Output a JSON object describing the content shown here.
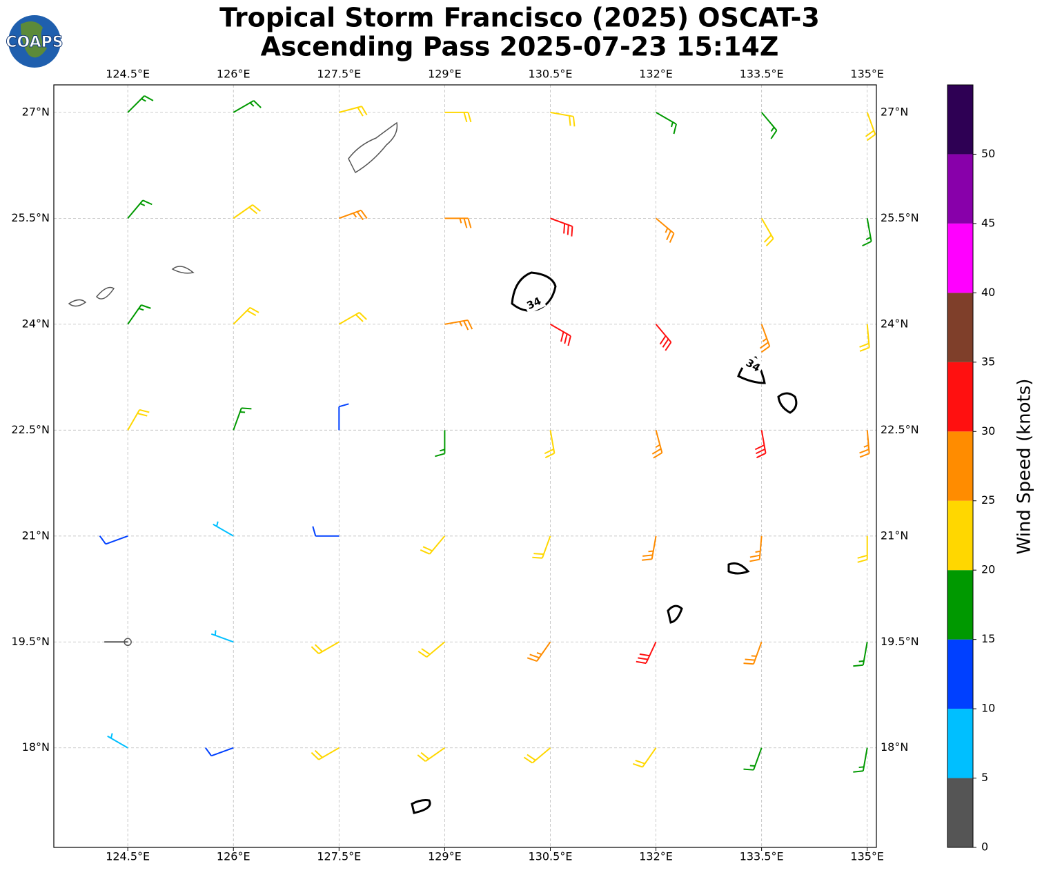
{
  "chart_data": {
    "type": "barbs",
    "title": [
      "Tropical Storm Francisco (2025) OSCAT-3",
      "Ascending Pass 2025-07-23 15:14Z"
    ],
    "logo": "COAPS",
    "xlim": [
      123.45,
      135.13
    ],
    "ylim": [
      16.59,
      27.39
    ],
    "xticks": [
      {
        "value": 124.5,
        "label": "124.5°E"
      },
      {
        "value": 126,
        "label": "126°E"
      },
      {
        "value": 127.5,
        "label": "127.5°E"
      },
      {
        "value": 129,
        "label": "129°E"
      },
      {
        "value": 130.5,
        "label": "130.5°E"
      },
      {
        "value": 132,
        "label": "132°E"
      },
      {
        "value": 133.5,
        "label": "133.5°E"
      },
      {
        "value": 135,
        "label": "135°E"
      }
    ],
    "yticks": [
      {
        "value": 27,
        "label": "27°N"
      },
      {
        "value": 25.5,
        "label": "25.5°N"
      },
      {
        "value": 24,
        "label": "24°N"
      },
      {
        "value": 22.5,
        "label": "22.5°N"
      },
      {
        "value": 21,
        "label": "21°N"
      },
      {
        "value": 19.5,
        "label": "19.5°N"
      },
      {
        "value": 18,
        "label": "18°N"
      }
    ],
    "grid": true,
    "colorbar": {
      "label": "Wind Speed (knots)",
      "lim": [
        0,
        55
      ],
      "bounds": [
        0,
        5,
        10,
        15,
        20,
        25,
        30,
        35,
        40,
        45,
        50,
        55
      ],
      "colors": [
        "#555555",
        "#00bfff",
        "#0040ff",
        "#009900",
        "#ffd700",
        "#ff8c00",
        "#ff1010",
        "#7f3f2a",
        "#ff00ff",
        "#8800aa",
        "#2e0054"
      ],
      "ticks": [
        0,
        5,
        10,
        15,
        20,
        25,
        30,
        35,
        40,
        45,
        50
      ]
    },
    "contour_labels": [
      "34",
      "34"
    ],
    "barbs": {
      "lon": [
        124.5,
        126,
        127.5,
        129,
        130.5,
        132,
        133.5,
        135,
        124.5,
        126,
        127.5,
        129,
        130.5,
        132,
        133.5,
        135,
        124.5,
        126,
        127.5,
        129,
        130.5,
        132,
        133.5,
        135,
        124.5,
        126,
        127.5,
        129,
        130.5,
        132,
        133.5,
        135,
        124.5,
        126,
        127.5,
        129,
        130.5,
        132,
        133.5,
        135,
        124.5,
        126,
        127.5,
        129,
        130.5,
        132,
        133.5,
        135,
        124.5,
        126,
        127.5,
        129,
        130.5,
        132,
        133.5,
        135
      ],
      "lat": [
        27,
        27,
        27,
        27,
        27,
        27,
        27,
        27,
        25.5,
        25.5,
        25.5,
        25.5,
        25.5,
        25.5,
        25.5,
        25.5,
        24,
        24,
        24,
        24,
        24,
        24,
        24,
        24,
        22.5,
        22.5,
        22.5,
        22.5,
        22.5,
        22.5,
        22.5,
        22.5,
        21,
        21,
        21,
        21,
        21,
        21,
        21,
        21,
        19.5,
        19.5,
        19.5,
        19.5,
        19.5,
        19.5,
        19.5,
        19.5,
        18,
        18,
        18,
        18,
        18,
        18,
        18,
        18
      ],
      "speed": [
        17,
        19,
        22,
        22,
        23,
        18,
        17,
        21,
        17,
        21,
        26,
        27,
        31,
        28,
        23,
        18,
        18,
        22,
        24,
        26,
        33,
        31,
        29,
        23,
        21,
        17,
        12,
        16,
        22,
        27,
        31,
        27,
        12,
        8,
        13,
        21,
        24,
        28,
        28,
        22,
        4,
        9,
        21,
        24,
        27,
        31,
        26,
        18,
        7,
        14,
        23,
        23,
        22,
        21,
        18,
        16
      ],
      "dir": [
        45,
        60,
        75,
        90,
        100,
        120,
        140,
        160,
        40,
        55,
        70,
        90,
        110,
        130,
        150,
        170,
        35,
        45,
        60,
        80,
        120,
        140,
        160,
        175,
        30,
        20,
        0,
        180,
        170,
        165,
        170,
        175,
        250,
        300,
        270,
        220,
        200,
        190,
        185,
        180,
        270,
        290,
        240,
        230,
        215,
        205,
        200,
        190,
        300,
        250,
        240,
        235,
        230,
        215,
        200,
        190
      ]
    }
  }
}
